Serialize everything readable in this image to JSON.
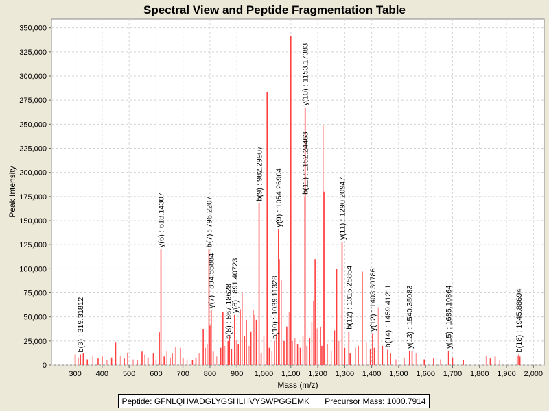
{
  "chart_data": {
    "type": "bar",
    "title": "Spectral View and Peptide Fragmentation Table",
    "xlabel": "Mass (m/z)",
    "ylabel": "Peak Intensity",
    "xlim": [
      212,
      2040
    ],
    "ylim": [
      0,
      359000
    ],
    "xticks": [
      300,
      400,
      500,
      600,
      700,
      800,
      900,
      1000,
      1100,
      1200,
      1300,
      1400,
      1500,
      1600,
      1700,
      1800,
      1900,
      2000
    ],
    "xtick_labels": [
      "300",
      "400",
      "500",
      "600",
      "700",
      "800",
      "900",
      "1,000",
      "1,100",
      "1,200",
      "1,300",
      "1,400",
      "1,500",
      "1,600",
      "1,700",
      "1,800",
      "1,900",
      "2,000"
    ],
    "yticks": [
      0,
      25000,
      50000,
      75000,
      100000,
      125000,
      150000,
      175000,
      200000,
      225000,
      250000,
      275000,
      300000,
      325000,
      350000
    ],
    "ytick_labels": [
      "0",
      "25,000",
      "50,000",
      "75,000",
      "100,000",
      "125,000",
      "150,000",
      "175,000",
      "200,000",
      "225,000",
      "250,000",
      "275,000",
      "300,000",
      "325,000",
      "350,000"
    ],
    "grid": true,
    "color": "#ff4040",
    "light_color": "#ff9a9a",
    "peaks": [
      [
        300,
        11000
      ],
      [
        312,
        8000
      ],
      [
        330,
        12000
      ],
      [
        345,
        6000
      ],
      [
        365,
        10000
      ],
      [
        385,
        7000
      ],
      [
        400,
        9000
      ],
      [
        418,
        5000
      ],
      [
        435,
        8000
      ],
      [
        450,
        24000
      ],
      [
        468,
        10000
      ],
      [
        482,
        7000
      ],
      [
        495,
        13000
      ],
      [
        515,
        6000
      ],
      [
        530,
        5000
      ],
      [
        548,
        14000
      ],
      [
        558,
        11000
      ],
      [
        570,
        8000
      ],
      [
        590,
        12000
      ],
      [
        600,
        6000
      ],
      [
        612,
        34000
      ],
      [
        630,
        9000
      ],
      [
        640,
        15000
      ],
      [
        652,
        8000
      ],
      [
        660,
        12000
      ],
      [
        672,
        19000
      ],
      [
        690,
        18000
      ],
      [
        700,
        7000
      ],
      [
        715,
        6000
      ],
      [
        735,
        5000
      ],
      [
        748,
        8000
      ],
      [
        760,
        12000
      ],
      [
        775,
        37000
      ],
      [
        782,
        18000
      ],
      [
        790,
        22000
      ],
      [
        800,
        41000
      ],
      [
        812,
        14000
      ],
      [
        825,
        9000
      ],
      [
        840,
        18000
      ],
      [
        848,
        55000
      ],
      [
        855,
        20000
      ],
      [
        872,
        30000
      ],
      [
        880,
        17000
      ],
      [
        898,
        26000
      ],
      [
        905,
        22000
      ],
      [
        912,
        58000
      ],
      [
        920,
        75000
      ],
      [
        928,
        30000
      ],
      [
        935,
        47000
      ],
      [
        945,
        20000
      ],
      [
        952,
        35000
      ],
      [
        960,
        57000
      ],
      [
        965,
        52000
      ],
      [
        972,
        47000
      ],
      [
        990,
        12000
      ],
      [
        1000,
        30000
      ],
      [
        1012,
        283000
      ],
      [
        1020,
        18000
      ],
      [
        1030,
        14000
      ],
      [
        1047,
        32000
      ],
      [
        1057,
        110000
      ],
      [
        1065,
        88000
      ],
      [
        1075,
        25000
      ],
      [
        1085,
        40000
      ],
      [
        1094,
        55000
      ],
      [
        1100,
        342000
      ],
      [
        1105,
        25000
      ],
      [
        1115,
        28000
      ],
      [
        1125,
        22000
      ],
      [
        1135,
        18000
      ],
      [
        1145,
        30000
      ],
      [
        1160,
        20000
      ],
      [
        1170,
        28000
      ],
      [
        1178,
        45000
      ],
      [
        1185,
        67000
      ],
      [
        1190,
        110000
      ],
      [
        1198,
        38000
      ],
      [
        1210,
        40000
      ],
      [
        1215,
        20000
      ],
      [
        1220,
        249000
      ],
      [
        1223,
        180000
      ],
      [
        1235,
        22000
      ],
      [
        1250,
        15000
      ],
      [
        1262,
        36000
      ],
      [
        1270,
        100000
      ],
      [
        1278,
        25000
      ],
      [
        1300,
        18000
      ],
      [
        1320,
        12000
      ],
      [
        1340,
        18000
      ],
      [
        1350,
        20000
      ],
      [
        1365,
        97000
      ],
      [
        1380,
        24000
      ],
      [
        1395,
        17000
      ],
      [
        1410,
        18000
      ],
      [
        1425,
        60000
      ],
      [
        1440,
        20000
      ],
      [
        1470,
        12000
      ],
      [
        1490,
        6000
      ],
      [
        1520,
        8000
      ],
      [
        1550,
        15000
      ],
      [
        1565,
        12000
      ],
      [
        1595,
        6000
      ],
      [
        1630,
        7000
      ],
      [
        1655,
        6000
      ],
      [
        1700,
        8000
      ],
      [
        1740,
        5000
      ],
      [
        1825,
        10000
      ],
      [
        1840,
        7000
      ],
      [
        1858,
        9000
      ],
      [
        1875,
        5000
      ],
      [
        1940,
        10000
      ],
      [
        1950,
        9000
      ]
    ],
    "annotations": [
      {
        "label": "b(3) : 319.31812",
        "mass": 319.31812,
        "intensity": 11000
      },
      {
        "label": "y(6) : 618.14307",
        "mass": 618.14307,
        "intensity": 120000
      },
      {
        "label": "b(7) : 796.2207",
        "mass": 796.2207,
        "intensity": 120000
      },
      {
        "label": "y(7) : 804.55884",
        "mass": 804.55884,
        "intensity": 57000
      },
      {
        "label": "b(8) : 867.18628",
        "mass": 867.18628,
        "intensity": 25000
      },
      {
        "label": "y(8) : 891.40723",
        "mass": 891.40723,
        "intensity": 52000
      },
      {
        "label": "b(9) : 982.29907",
        "mass": 982.29907,
        "intensity": 168000
      },
      {
        "label": "b(10) : 1039.11328",
        "mass": 1039.11328,
        "intensity": 25000
      },
      {
        "label": "y(9) : 1054.26904",
        "mass": 1054.26904,
        "intensity": 141000
      },
      {
        "label": "b(11) : 1152.24463",
        "mass": 1152.24463,
        "intensity": 175000
      },
      {
        "label": "y(10) : 1153.17383",
        "mass": 1153.17383,
        "intensity": 267000
      },
      {
        "label": "y(11) : 1290.20947",
        "mass": 1290.20947,
        "intensity": 128000
      },
      {
        "label": "b(12) : 1315.25854",
        "mass": 1315.25854,
        "intensity": 35000
      },
      {
        "label": "y(12) : 1403.30786",
        "mass": 1403.30786,
        "intensity": 33000
      },
      {
        "label": "b(14) : 1459.41211",
        "mass": 1459.41211,
        "intensity": 16000
      },
      {
        "label": "y(13) : 1540.35083",
        "mass": 1540.35083,
        "intensity": 15000
      },
      {
        "label": "y(15) : 1685.10864",
        "mass": 1685.10864,
        "intensity": 15000
      },
      {
        "label": "b(18) : 1945.88694",
        "mass": 1945.88694,
        "intensity": 11000
      }
    ]
  },
  "legend": {
    "peptide": "Peptide: GFNLQHVADGLYGSHLHVYSWPGGEMK",
    "precursor": "Precursor Mass: 1000.7914"
  }
}
